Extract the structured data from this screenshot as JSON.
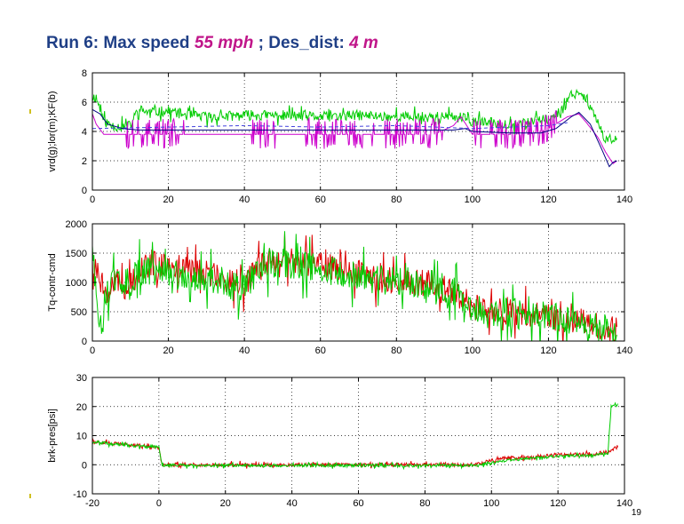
{
  "slide": {
    "title_part1": "Run 6: Max speed ",
    "title_speed": "55 mph",
    "title_part2": " ; Des_dist: ",
    "title_dist": "4 m",
    "page_number": "19"
  },
  "colors": {
    "title": "#1f3f86",
    "accent": "#c0168a",
    "green": "#00cc00",
    "red": "#dd0000",
    "magenta": "#cc00cc",
    "navy": "#000080",
    "bullet": "#d0c020"
  },
  "chart_data": [
    {
      "type": "line",
      "ylabel": "vrd(g);lor(m);KF(b)",
      "xlim": [
        0,
        140
      ],
      "ylim": [
        0,
        8
      ],
      "xticks": [
        0,
        20,
        40,
        60,
        80,
        100,
        120,
        140
      ],
      "yticks": [
        0,
        2,
        4,
        6,
        8
      ],
      "grid": true,
      "series": [
        {
          "color": "#00cc00",
          "style": "noisy",
          "noise": 0.35,
          "x": [
            0,
            1,
            2,
            3,
            5,
            8,
            10,
            12,
            15,
            20,
            25,
            30,
            40,
            50,
            60,
            70,
            80,
            90,
            96,
            100,
            105,
            110,
            115,
            120,
            124,
            126,
            128,
            130,
            133,
            135,
            137,
            138
          ],
          "y": [
            6.4,
            6.3,
            5.6,
            4.7,
            4.4,
            4.3,
            4.4,
            5.5,
            5.3,
            5.4,
            5.1,
            5.0,
            5.1,
            5.1,
            5.0,
            5.1,
            5.0,
            5.0,
            5.0,
            4.7,
            4.6,
            4.5,
            4.6,
            4.8,
            5.6,
            6.6,
            6.7,
            6.3,
            4.5,
            3.3,
            3.6,
            3.6
          ]
        },
        {
          "color": "#cc00cc",
          "style": "spiky",
          "x": [
            0,
            1,
            3,
            5,
            8,
            10,
            20,
            30,
            40,
            50,
            60,
            70,
            80,
            90,
            95,
            97,
            100,
            110,
            115,
            120,
            125,
            128,
            130,
            133,
            135,
            137,
            138
          ],
          "y": [
            5.2,
            4.5,
            3.8,
            3.8,
            3.8,
            3.8,
            3.8,
            3.8,
            3.8,
            3.8,
            3.8,
            3.8,
            3.8,
            3.8,
            4.4,
            5.0,
            3.8,
            3.8,
            3.8,
            4.2,
            5.0,
            5.2,
            4.6,
            3.6,
            2.6,
            1.8,
            2.0
          ],
          "spike_ranges": [
            [
              9,
              24
            ],
            [
              42,
              48
            ],
            [
              56,
              74
            ],
            [
              77,
              92
            ],
            [
              100,
              122
            ]
          ],
          "spike_up": 1.1,
          "spike_down": 1.0
        },
        {
          "color": "#000080",
          "style": "smooth",
          "x": [
            0,
            2,
            4,
            8,
            12,
            20,
            40,
            60,
            80,
            95,
            98,
            100,
            110,
            118,
            122,
            126,
            128,
            131,
            134,
            136,
            137,
            138
          ],
          "y": [
            5.5,
            5.2,
            4.5,
            4.2,
            4.1,
            4.1,
            4.1,
            4.1,
            4.1,
            4.1,
            4.2,
            4.0,
            3.9,
            3.9,
            4.2,
            5.0,
            5.3,
            4.5,
            2.8,
            1.6,
            1.9,
            2.0
          ]
        },
        {
          "color": "#4444dd",
          "style": "dashed",
          "x": [
            0,
            20,
            40,
            60,
            80,
            100,
            120,
            125
          ],
          "y": [
            4.2,
            4.3,
            4.4,
            4.3,
            4.4,
            4.2,
            4.4,
            4.6
          ]
        }
      ]
    },
    {
      "type": "line",
      "ylabel": "Tq-contr-cmd",
      "xlim": [
        0,
        140
      ],
      "ylim": [
        0,
        2000
      ],
      "xticks": [
        0,
        20,
        40,
        60,
        80,
        100,
        120,
        140
      ],
      "yticks": [
        0,
        500,
        1000,
        1500,
        2000
      ],
      "grid": true,
      "series": [
        {
          "color": "#dd0000",
          "style": "noisy",
          "noise": 230,
          "x": [
            0,
            2,
            4,
            6,
            8,
            10,
            12,
            15,
            20,
            25,
            30,
            35,
            40,
            45,
            50,
            55,
            60,
            65,
            70,
            75,
            80,
            85,
            90,
            95,
            100,
            105,
            110,
            115,
            120,
            125,
            130,
            135,
            138
          ],
          "y": [
            1350,
            1100,
            700,
            1050,
            900,
            1000,
            1150,
            1300,
            1300,
            1200,
            1150,
            1050,
            1000,
            1300,
            1400,
            1350,
            1300,
            1250,
            1150,
            1050,
            1050,
            1000,
            1000,
            800,
            600,
            500,
            500,
            450,
            400,
            350,
            320,
            200,
            180
          ]
        },
        {
          "color": "#00cc00",
          "style": "noisy",
          "noise": 260,
          "x": [
            0,
            1,
            2,
            3,
            5,
            8,
            10,
            12,
            15,
            20,
            25,
            30,
            35,
            40,
            45,
            50,
            55,
            60,
            65,
            70,
            75,
            80,
            85,
            90,
            95,
            100,
            105,
            110,
            115,
            120,
            125,
            130,
            135,
            138
          ],
          "y": [
            1550,
            900,
            200,
            600,
            1050,
            950,
            1000,
            1200,
            1200,
            1150,
            1100,
            1050,
            950,
            900,
            1300,
            1350,
            1300,
            1250,
            1150,
            1100,
            1050,
            1000,
            1000,
            950,
            850,
            500,
            500,
            500,
            450,
            420,
            380,
            300,
            220,
            180
          ]
        }
      ]
    },
    {
      "type": "line",
      "ylabel": "brk-pres[psi]",
      "xlim": [
        -20,
        140
      ],
      "ylim": [
        -10,
        30
      ],
      "xticks": [
        -20,
        0,
        20,
        40,
        60,
        80,
        100,
        120,
        140
      ],
      "yticks": [
        -10,
        0,
        10,
        20,
        30
      ],
      "grid": true,
      "series": [
        {
          "color": "#dd0000",
          "style": "noisy",
          "noise": 0.6,
          "x": [
            -20,
            -15,
            -10,
            -5,
            0,
            1,
            5,
            20,
            40,
            60,
            80,
            95,
            100,
            105,
            110,
            115,
            120,
            125,
            130,
            135,
            138
          ],
          "y": [
            8,
            7.5,
            7,
            6.5,
            6,
            0,
            0,
            0,
            0,
            0,
            0,
            0,
            1.5,
            2.5,
            2.5,
            3,
            3.5,
            3.5,
            3.5,
            4.5,
            6
          ]
        },
        {
          "color": "#00cc00",
          "style": "noisy",
          "noise": 0.5,
          "x": [
            -20,
            -15,
            -10,
            -5,
            0,
            1,
            5,
            20,
            40,
            60,
            80,
            95,
            100,
            105,
            110,
            115,
            120,
            125,
            130,
            135,
            136,
            137,
            138
          ],
          "y": [
            8,
            7.3,
            6.8,
            6.3,
            6,
            -0.3,
            -0.2,
            -0.3,
            -0.3,
            -0.3,
            -0.3,
            -0.2,
            0.5,
            1.5,
            2.0,
            2.5,
            3.0,
            3.0,
            3.0,
            4.0,
            20,
            21,
            20
          ]
        }
      ]
    }
  ]
}
